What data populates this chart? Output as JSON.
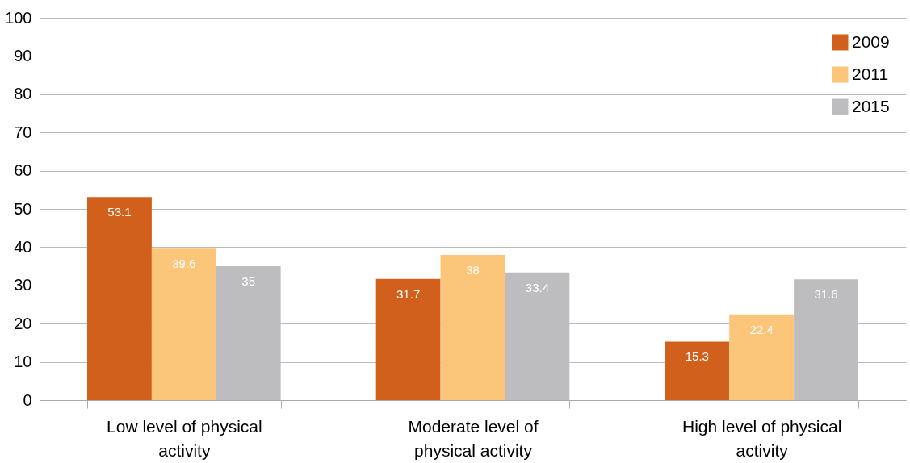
{
  "chart_data": {
    "type": "bar",
    "categories": [
      "Low level of physical activity",
      "Moderate level of physical activity",
      "High level of physical activity"
    ],
    "series": [
      {
        "name": "2009",
        "color": "#d2601d",
        "values": [
          53.1,
          31.7,
          15.3
        ]
      },
      {
        "name": "2011",
        "color": "#fbc57a",
        "values": [
          39.6,
          38,
          22.4
        ]
      },
      {
        "name": "2015",
        "color": "#bdbdbf",
        "values": [
          35,
          33.4,
          31.6
        ]
      }
    ],
    "ylim": [
      0,
      100
    ],
    "yticks": [
      0,
      10,
      20,
      30,
      40,
      50,
      60,
      70,
      80,
      90,
      100
    ],
    "grid": "y",
    "legend": "top right",
    "data_labels": true
  }
}
